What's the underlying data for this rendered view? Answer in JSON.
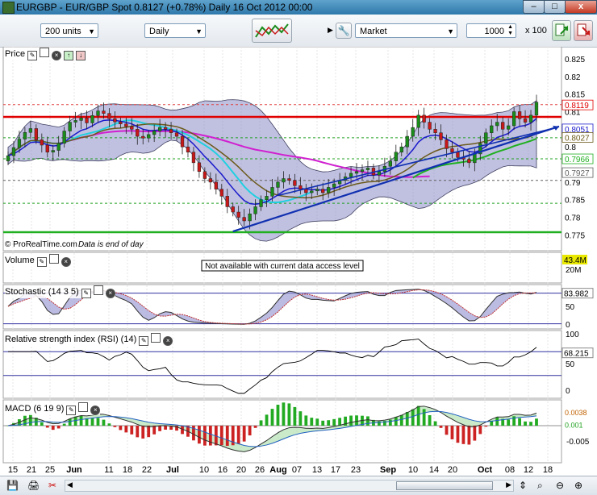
{
  "window": {
    "title": "EURGBP - EUR/GBP Spot   0.8127 (+0.78%)   Daily  16 Oct 2012 00:00",
    "minimize": "–",
    "maximize": "□",
    "close": "x"
  },
  "toolbar": {
    "units": "200 units",
    "period": "Daily",
    "order_type": "Market",
    "quantity": "1000",
    "multiplier": "x 100"
  },
  "panes": {
    "price_label": "Price",
    "volume_label": "Volume",
    "stochastic_label": "Stochastic (14 3 5)",
    "rsi_label": "Relative strength index (RSI) (14)",
    "macd_label": "MACD (6 19 9)",
    "copyright": "© ProRealTime.com",
    "end_note": "Data is end of day",
    "volume_note": "Not available with current data access level"
  },
  "colors": {
    "candle_up": "#1a8c1a",
    "candle_down": "#c81818",
    "bollinger_fill": "#8c8cc8",
    "ma_short": "#1a1acc",
    "ma_mid": "#6b5a1a",
    "ma_long": "#d020d0",
    "ma_cyan": "#20d0e0",
    "ma_green": "#20b020",
    "resistance": "#e00000",
    "support": "#20b020",
    "trendline": "#1030b0"
  },
  "chart_data": {
    "type": "candlestick",
    "instrument": "EURGBP",
    "x_tick_labels": [
      "15",
      "21",
      "25",
      "Jun",
      "11",
      "18",
      "22",
      "Jul",
      "10",
      "16",
      "20",
      "26",
      "Aug",
      "07",
      "13",
      "17",
      "23",
      "Sep",
      "10",
      "14",
      "20",
      "Oct",
      "08",
      "12",
      "18"
    ],
    "price_axis": {
      "ticks": [
        "0.825",
        "0.82",
        "0.815",
        "0.81",
        "0.8",
        "0.79",
        "0.785",
        "0.78",
        "0.775"
      ],
      "range": [
        0.7735,
        0.8275
      ],
      "labels": [
        "0.8119",
        "0.8051",
        "0.8027",
        "0.7966",
        "0.7927"
      ]
    },
    "closes": [
      0.7975,
      0.7998,
      0.8022,
      0.8041,
      0.8052,
      0.802,
      0.8005,
      0.7985,
      0.799,
      0.801,
      0.8045,
      0.807,
      0.8075,
      0.8082,
      0.8068,
      0.8089,
      0.8102,
      0.8095,
      0.808,
      0.8071,
      0.8065,
      0.8058,
      0.805,
      0.803,
      0.8025,
      0.8035,
      0.8045,
      0.8055,
      0.805,
      0.804,
      0.803,
      0.8,
      0.7985,
      0.7955,
      0.793,
      0.791,
      0.79,
      0.788,
      0.786,
      0.783,
      0.7815,
      0.78,
      0.779,
      0.781,
      0.783,
      0.785,
      0.786,
      0.7885,
      0.79,
      0.791,
      0.7905,
      0.789,
      0.788,
      0.787,
      0.7875,
      0.788,
      0.787,
      0.7885,
      0.7895,
      0.7905,
      0.7915,
      0.7925,
      0.793,
      0.7935,
      0.794,
      0.792,
      0.793,
      0.7945,
      0.796,
      0.7985,
      0.8,
      0.803,
      0.8055,
      0.809,
      0.807,
      0.805,
      0.804,
      0.802,
      0.7995,
      0.7985,
      0.797,
      0.7965,
      0.7955,
      0.798,
      0.801,
      0.804,
      0.806,
      0.807,
      0.805,
      0.806,
      0.81,
      0.808,
      0.807,
      0.809,
      0.8127
    ],
    "resistance": 0.8085,
    "support": 0.7758,
    "dashed_levels": [
      {
        "value": 0.812,
        "color": "#e04040"
      },
      {
        "value": 0.8026,
        "color": "#20a020"
      },
      {
        "value": 0.7966,
        "color": "#20a020"
      },
      {
        "value": 0.7905,
        "color": "#606060"
      },
      {
        "value": 0.784,
        "color": "#20a020"
      }
    ],
    "volume": {
      "ticks": [
        "43.4M",
        "20M"
      ]
    },
    "stochastic": {
      "ticks": [
        "100",
        "50",
        "0"
      ],
      "current": "83.982"
    },
    "rsi": {
      "ticks": [
        "100",
        "50",
        "0"
      ],
      "current": "68.215"
    },
    "macd": {
      "ticks": [
        "0",
        "-0.005"
      ],
      "current": [
        "0.0038",
        "0.001"
      ]
    }
  }
}
